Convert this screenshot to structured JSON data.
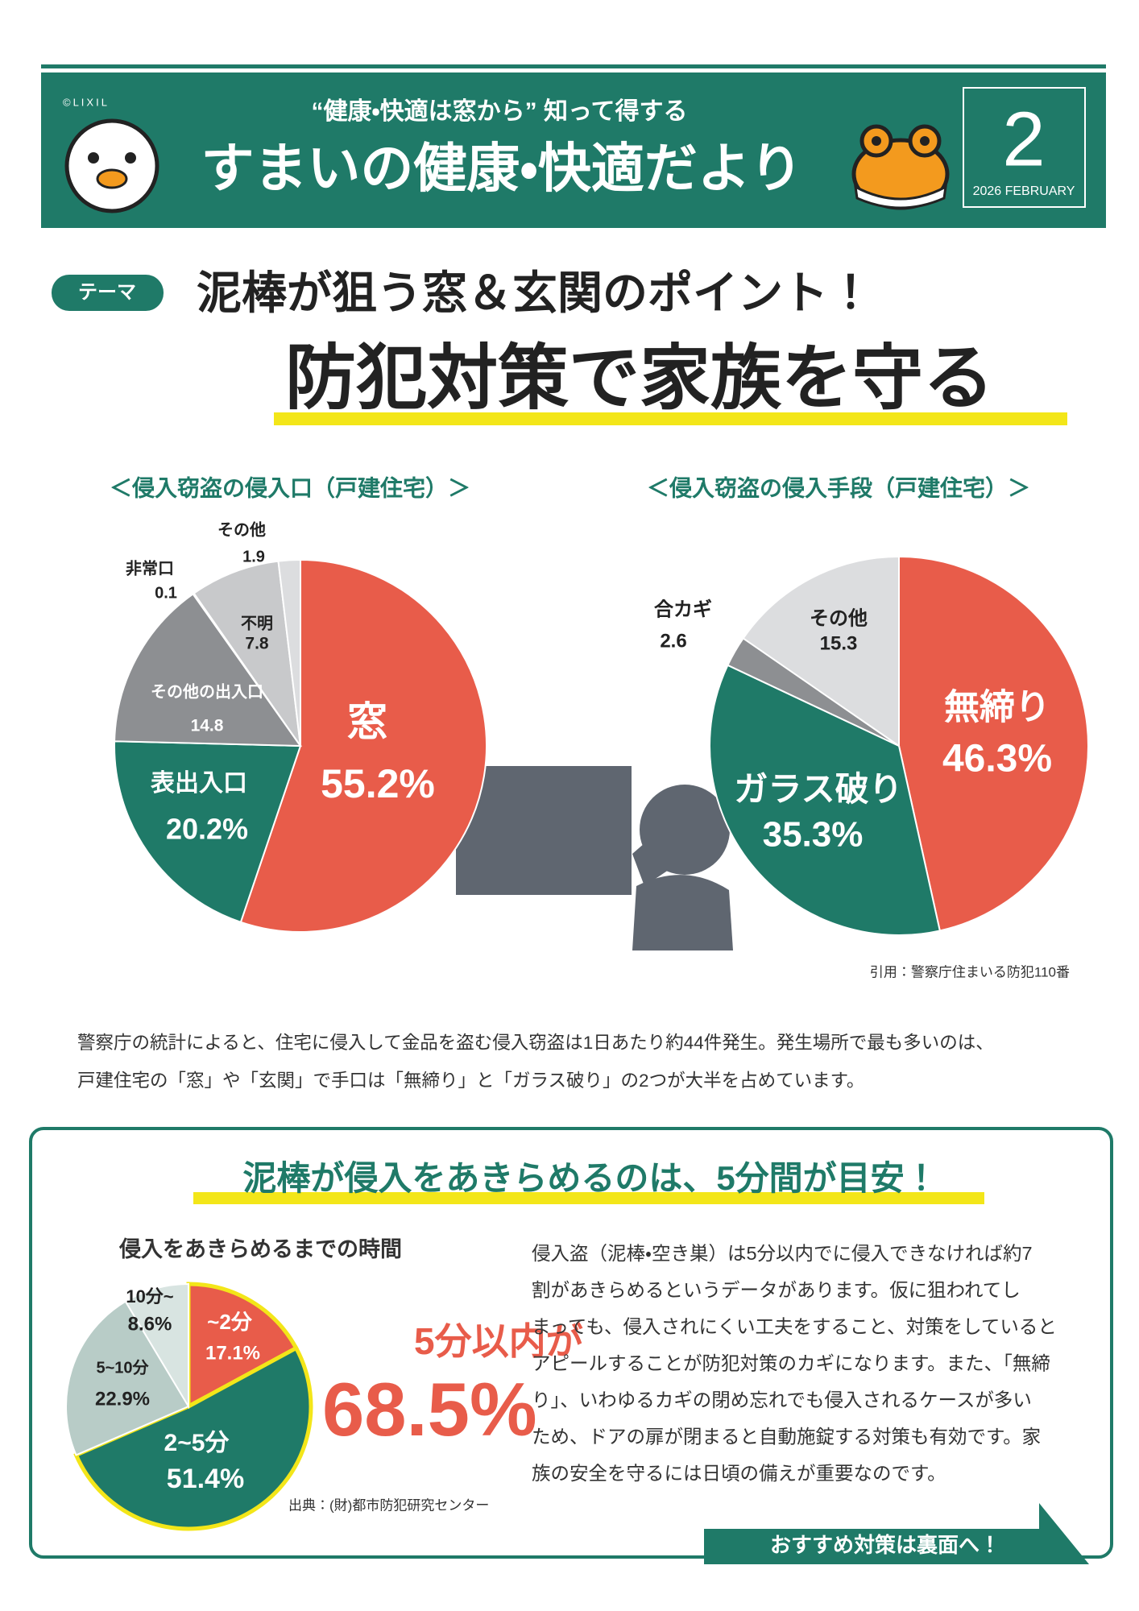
{
  "header": {
    "copyright": "©LIXIL",
    "tagline": "“健康・快適は窓から” 知って得する",
    "title": "すまいの健康・快適だより",
    "issue": "2",
    "date": "2026 FEBRUARY"
  },
  "theme": {
    "tag": "テーマ",
    "headline": "泥棒が狙う窓＆玄関のポイント！",
    "title": "防犯対策で家族を守る"
  },
  "chart_data": [
    {
      "type": "pie",
      "title": "＜侵入窃盗の侵入口（戸建住宅）＞",
      "categories": [
        "窓",
        "表出入口",
        "その他の出入口",
        "非常口",
        "不明",
        "その他"
      ],
      "values": [
        55.2,
        20.2,
        14.8,
        0.1,
        7.8,
        1.9
      ],
      "value_labels": [
        "55.2%",
        "20.2%",
        "14.8",
        "0.1",
        "7.8",
        "1.9"
      ],
      "colors": [
        "#e85c4a",
        "#1f7a68",
        "#8d8f92",
        "#b0b2b4",
        "#c8c9cb",
        "#dcdddf"
      ]
    },
    {
      "type": "pie",
      "title": "＜侵入窃盗の侵入手段（戸建住宅）＞",
      "categories": [
        "無締り",
        "ガラス破り",
        "合カギ",
        "その他"
      ],
      "values": [
        46.3,
        35.3,
        2.6,
        15.3
      ],
      "value_labels": [
        "46.3%",
        "35.3%",
        "2.6",
        "15.3"
      ],
      "colors": [
        "#e85c4a",
        "#1f7a68",
        "#8d8f92",
        "#dcdddf"
      ],
      "source": "引用：警察庁住まいる防犯110番"
    },
    {
      "type": "pie",
      "title": "侵入をあきらめるまでの時間",
      "categories": [
        "~2分",
        "2~5分",
        "5~10分",
        "10分~"
      ],
      "values": [
        17.1,
        51.4,
        22.9,
        8.6
      ],
      "value_labels": [
        "17.1%",
        "51.4%",
        "22.9%",
        "8.6%"
      ],
      "colors": [
        "#e85c4a",
        "#1f7a68",
        "#b8ccc7",
        "#d8e4e1"
      ],
      "source": "出典：(財)都市防犯研究センター"
    }
  ],
  "intro": [
    "警察庁の統計によると、住宅に侵入して金品を盗む侵入窃盗は1日あたり約44件発生。発生場所で最も多いのは、",
    "戸建住宅の「窓」や「玄関」で手口は「無締り」と「ガラス破り」の2つが大半を占めています。"
  ],
  "box": {
    "heading": "泥棒が侵入をあきらめるのは、5分間が目安！",
    "highlight_label": "5分以内が",
    "highlight_value": "68.5%",
    "text": [
      "侵入盗（泥棒・空き巣）は5分以内でに侵入できなければ約7",
      "割があきらめるというデータがあります。仮に狙われてし",
      "まっても、侵入されにくい工夫をすること、対策をしていると",
      "アピールすることが防犯対策のカギになります。また、「無締",
      "り」、いわゆるカギの閉め忘れでも侵入されるケースが多い",
      "ため、ドアの扉が閉まると自動施錠する対策も有効です。家",
      "族の安全を守るには日頃の備えが重要なのです。"
    ],
    "cta": "おすすめ対策は裏面へ！"
  }
}
